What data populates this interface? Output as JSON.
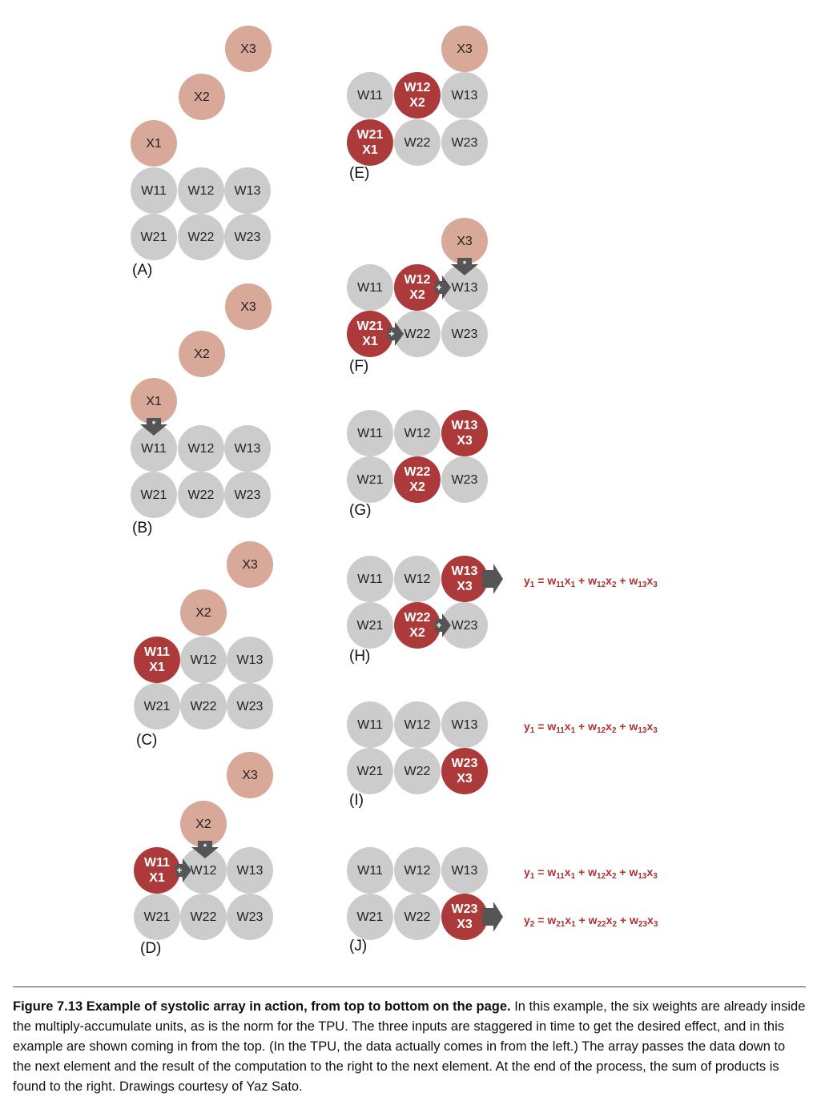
{
  "panels": [
    {
      "label": "(A)",
      "nodes": [
        {
          "kind": "x",
          "lines": [
            "X3"
          ]
        },
        {
          "kind": "x",
          "lines": [
            "X2"
          ]
        },
        {
          "kind": "x",
          "lines": [
            "X1"
          ]
        },
        {
          "kind": "w",
          "lines": [
            "W11"
          ]
        },
        {
          "kind": "w",
          "lines": [
            "W12"
          ]
        },
        {
          "kind": "w",
          "lines": [
            "W13"
          ]
        },
        {
          "kind": "w",
          "lines": [
            "W21"
          ]
        },
        {
          "kind": "w",
          "lines": [
            "W22"
          ]
        },
        {
          "kind": "w",
          "lines": [
            "W23"
          ]
        }
      ]
    },
    {
      "label": "(B)",
      "nodes": [
        {
          "kind": "x",
          "lines": [
            "X3"
          ]
        },
        {
          "kind": "x",
          "lines": [
            "X2"
          ]
        },
        {
          "kind": "x",
          "lines": [
            "X1"
          ]
        },
        {
          "kind": "w",
          "lines": [
            "W11"
          ]
        },
        {
          "kind": "w",
          "lines": [
            "W12"
          ]
        },
        {
          "kind": "w",
          "lines": [
            "W13"
          ]
        },
        {
          "kind": "w",
          "lines": [
            "W21"
          ]
        },
        {
          "kind": "w",
          "lines": [
            "W22"
          ]
        },
        {
          "kind": "w",
          "lines": [
            "W23"
          ]
        }
      ]
    },
    {
      "label": "(C)",
      "nodes": [
        {
          "kind": "x",
          "lines": [
            "X3"
          ]
        },
        {
          "kind": "x",
          "lines": [
            "X2"
          ]
        },
        {
          "kind": "a",
          "lines": [
            "W11",
            "X1"
          ]
        },
        {
          "kind": "w",
          "lines": [
            "W12"
          ]
        },
        {
          "kind": "w",
          "lines": [
            "W13"
          ]
        },
        {
          "kind": "w",
          "lines": [
            "W21"
          ]
        },
        {
          "kind": "w",
          "lines": [
            "W22"
          ]
        },
        {
          "kind": "w",
          "lines": [
            "W23"
          ]
        }
      ]
    },
    {
      "label": "(D)",
      "nodes": [
        {
          "kind": "x",
          "lines": [
            "X3"
          ]
        },
        {
          "kind": "x",
          "lines": [
            "X2"
          ]
        },
        {
          "kind": "a",
          "lines": [
            "W11",
            "X1"
          ]
        },
        {
          "kind": "w",
          "lines": [
            "W12"
          ]
        },
        {
          "kind": "w",
          "lines": [
            "W13"
          ]
        },
        {
          "kind": "w",
          "lines": [
            "W21"
          ]
        },
        {
          "kind": "w",
          "lines": [
            "W22"
          ]
        },
        {
          "kind": "w",
          "lines": [
            "W23"
          ]
        }
      ]
    },
    {
      "label": "(E)",
      "nodes": [
        {
          "kind": "x",
          "lines": [
            "X3"
          ]
        },
        {
          "kind": "w",
          "lines": [
            "W11"
          ]
        },
        {
          "kind": "a",
          "lines": [
            "W12",
            "X2"
          ]
        },
        {
          "kind": "w",
          "lines": [
            "W13"
          ]
        },
        {
          "kind": "a",
          "lines": [
            "W21",
            "X1"
          ]
        },
        {
          "kind": "w",
          "lines": [
            "W22"
          ]
        },
        {
          "kind": "w",
          "lines": [
            "W23"
          ]
        }
      ]
    },
    {
      "label": "(F)",
      "nodes": [
        {
          "kind": "x",
          "lines": [
            "X3"
          ]
        },
        {
          "kind": "w",
          "lines": [
            "W11"
          ]
        },
        {
          "kind": "a",
          "lines": [
            "W12",
            "X2"
          ]
        },
        {
          "kind": "w",
          "lines": [
            "W13"
          ]
        },
        {
          "kind": "a",
          "lines": [
            "W21",
            "X1"
          ]
        },
        {
          "kind": "w",
          "lines": [
            "W22"
          ]
        },
        {
          "kind": "w",
          "lines": [
            "W23"
          ]
        }
      ]
    },
    {
      "label": "(G)",
      "nodes": [
        {
          "kind": "w",
          "lines": [
            "W11"
          ]
        },
        {
          "kind": "w",
          "lines": [
            "W12"
          ]
        },
        {
          "kind": "a",
          "lines": [
            "W13",
            "X3"
          ]
        },
        {
          "kind": "w",
          "lines": [
            "W21"
          ]
        },
        {
          "kind": "a",
          "lines": [
            "W22",
            "X2"
          ]
        },
        {
          "kind": "w",
          "lines": [
            "W23"
          ]
        }
      ]
    },
    {
      "label": "(H)",
      "nodes": [
        {
          "kind": "w",
          "lines": [
            "W11"
          ]
        },
        {
          "kind": "w",
          "lines": [
            "W12"
          ]
        },
        {
          "kind": "a",
          "lines": [
            "W13",
            "X3"
          ]
        },
        {
          "kind": "w",
          "lines": [
            "W21"
          ]
        },
        {
          "kind": "a",
          "lines": [
            "W22",
            "X2"
          ]
        },
        {
          "kind": "w",
          "lines": [
            "W23"
          ]
        }
      ]
    },
    {
      "label": "(I)",
      "nodes": [
        {
          "kind": "w",
          "lines": [
            "W11"
          ]
        },
        {
          "kind": "w",
          "lines": [
            "W12"
          ]
        },
        {
          "kind": "w",
          "lines": [
            "W13"
          ]
        },
        {
          "kind": "w",
          "lines": [
            "W21"
          ]
        },
        {
          "kind": "w",
          "lines": [
            "W22"
          ]
        },
        {
          "kind": "a",
          "lines": [
            "W23",
            "X3"
          ]
        }
      ]
    },
    {
      "label": "(J)",
      "nodes": [
        {
          "kind": "w",
          "lines": [
            "W11"
          ]
        },
        {
          "kind": "w",
          "lines": [
            "W12"
          ]
        },
        {
          "kind": "w",
          "lines": [
            "W13"
          ]
        },
        {
          "kind": "w",
          "lines": [
            "W21"
          ]
        },
        {
          "kind": "w",
          "lines": [
            "W22"
          ]
        },
        {
          "kind": "a",
          "lines": [
            "W23",
            "X3"
          ]
        }
      ]
    }
  ],
  "equations": [
    {
      "lhs": "y",
      "lhs_sub": "1",
      "terms": [
        [
          "w",
          "11",
          "x",
          "1"
        ],
        [
          "w",
          "12",
          "x",
          "2"
        ],
        [
          "w",
          "13",
          "x",
          "3"
        ]
      ]
    },
    {
      "lhs": "y",
      "lhs_sub": "1",
      "terms": [
        [
          "w",
          "11",
          "x",
          "1"
        ],
        [
          "w",
          "12",
          "x",
          "2"
        ],
        [
          "w",
          "13",
          "x",
          "3"
        ]
      ]
    },
    {
      "lhs": "y",
      "lhs_sub": "1",
      "terms": [
        [
          "w",
          "11",
          "x",
          "1"
        ],
        [
          "w",
          "12",
          "x",
          "2"
        ],
        [
          "w",
          "13",
          "x",
          "3"
        ]
      ]
    },
    {
      "lhs": "y",
      "lhs_sub": "2",
      "terms": [
        [
          "w",
          "21",
          "x",
          "1"
        ],
        [
          "w",
          "22",
          "x",
          "2"
        ],
        [
          "w",
          "23",
          "x",
          "3"
        ]
      ]
    }
  ],
  "symbols": {
    "multiply": "*",
    "add": "+"
  },
  "colors": {
    "weight": "#cccccc",
    "input": "#d8a898",
    "active": "#ad3a3a",
    "arrow": "#555555",
    "equation": "#b03030"
  },
  "caption": {
    "bold": "Figure 7.13  Example of systolic array in action, from top to bottom on the page.",
    "text": " In this example, the six weights are already inside the multiply-accumulate units, as is the norm for the TPU. The three inputs are staggered in time to get the desired effect, and in this example are shown coming in from the top. (In the TPU, the data actually comes in from the left.) The array passes the data down to the next element and the result of the computation to the right to the next element. At the end of the process, the sum of products is found to the right.  Drawings courtesy of Yaz Sato."
  }
}
